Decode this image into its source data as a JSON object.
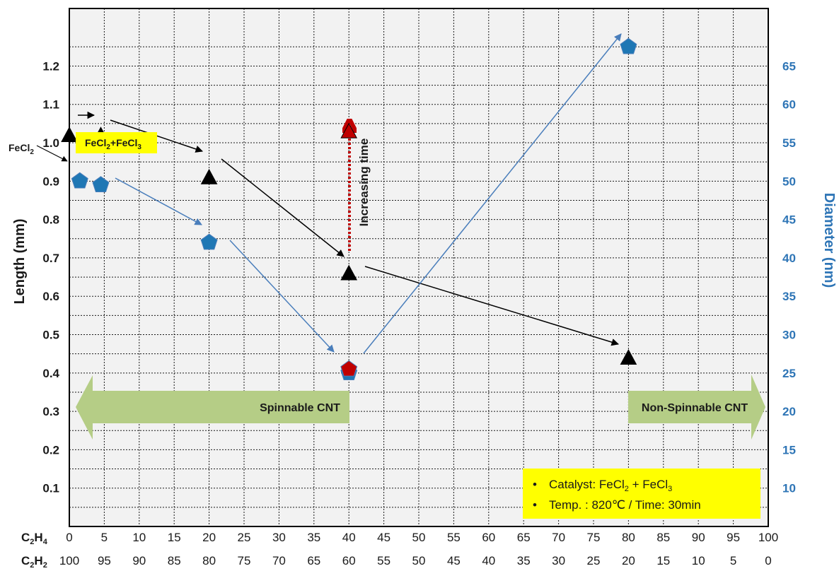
{
  "chart_data": {
    "type": "scatter",
    "title": "",
    "colors": {
      "length": "#000000",
      "diameter": "#1f77b4",
      "highlight": "#c00000",
      "band": "#b5cd86",
      "note_bg": "#ffff00",
      "diameter_axis": "#2e75b6",
      "plot_bg": "#f2f2f2"
    },
    "x_axis": {
      "range": [
        0,
        100
      ],
      "rows": [
        {
          "label_base": "C",
          "label_sub1": "2",
          "label_mid": "H",
          "label_sub2": "4",
          "ticks": [
            "0",
            "5",
            "10",
            "15",
            "20",
            "25",
            "30",
            "35",
            "40",
            "45",
            "50",
            "55",
            "60",
            "65",
            "70",
            "75",
            "80",
            "85",
            "90",
            "95",
            "100"
          ]
        },
        {
          "label_base": "C",
          "label_sub1": "2",
          "label_mid": "H",
          "label_sub2": "2",
          "ticks": [
            "100",
            "95",
            "90",
            "85",
            "80",
            "75",
            "70",
            "65",
            "60",
            "55",
            "50",
            "45",
            "40",
            "35",
            "30",
            "25",
            "20",
            "15",
            "10",
            "5",
            "0"
          ]
        }
      ]
    },
    "y_left": {
      "label": "Length (mm)",
      "range": [
        0,
        1.35
      ],
      "ticks": [
        "0.1",
        "0.2",
        "0.3",
        "0.4",
        "0.5",
        "0.6",
        "0.7",
        "0.8",
        "0.9",
        "1.0",
        "1.1",
        "1.2"
      ],
      "tick_values": [
        0.1,
        0.2,
        0.3,
        0.4,
        0.5,
        0.6,
        0.7,
        0.8,
        0.9,
        1.0,
        1.1,
        1.2
      ]
    },
    "y_right": {
      "label": "Diameter  (nm)",
      "range": [
        5,
        72.5
      ],
      "ticks": [
        "10",
        "15",
        "20",
        "25",
        "30",
        "35",
        "40",
        "45",
        "50",
        "55",
        "60",
        "65"
      ],
      "tick_values": [
        10,
        15,
        20,
        25,
        30,
        35,
        40,
        45,
        50,
        55,
        60,
        65
      ]
    },
    "series": [
      {
        "name": "Length",
        "marker": "triangle",
        "axis": "left",
        "points": [
          {
            "x": 0,
            "y": 1.02
          },
          {
            "x": 4.5,
            "y": 1.02
          },
          {
            "x": 20,
            "y": 0.91
          },
          {
            "x": 40,
            "y": 0.66
          },
          {
            "x": 80,
            "y": 0.44
          }
        ],
        "extra_points": [
          {
            "x": 40,
            "y": 1.03,
            "color": "highlight"
          }
        ]
      },
      {
        "name": "Diameter",
        "marker": "pentagon",
        "axis": "right",
        "points": [
          {
            "x": 1.5,
            "y": 50
          },
          {
            "x": 4.5,
            "y": 49.5
          },
          {
            "x": 20,
            "y": 42
          },
          {
            "x": 40,
            "y": 25
          },
          {
            "x": 80,
            "y": 67.5
          }
        ],
        "extra_points": [
          {
            "x": 40,
            "y": 25.5,
            "color": "highlight"
          }
        ]
      }
    ],
    "annotations": {
      "fecl2_label": {
        "base": "FeCl",
        "sub": "2"
      },
      "mixed_label": {
        "base1": "FeCl",
        "sub1": "2",
        "mid": "+FeCl",
        "sub2": "3"
      },
      "increasing_time": "Increasing time",
      "spinnable": "Spinnable CNT",
      "non_spinnable": "Non-Spinnable CNT",
      "catalyst_bullet": "•",
      "catalyst_prefix": "Catalyst: FeCl",
      "catalyst_sub1": "2",
      "catalyst_mid": " + FeCl",
      "catalyst_sub2": "3",
      "temp_line": "Temp. : 820℃  / Time: 30min"
    },
    "grid": true
  }
}
